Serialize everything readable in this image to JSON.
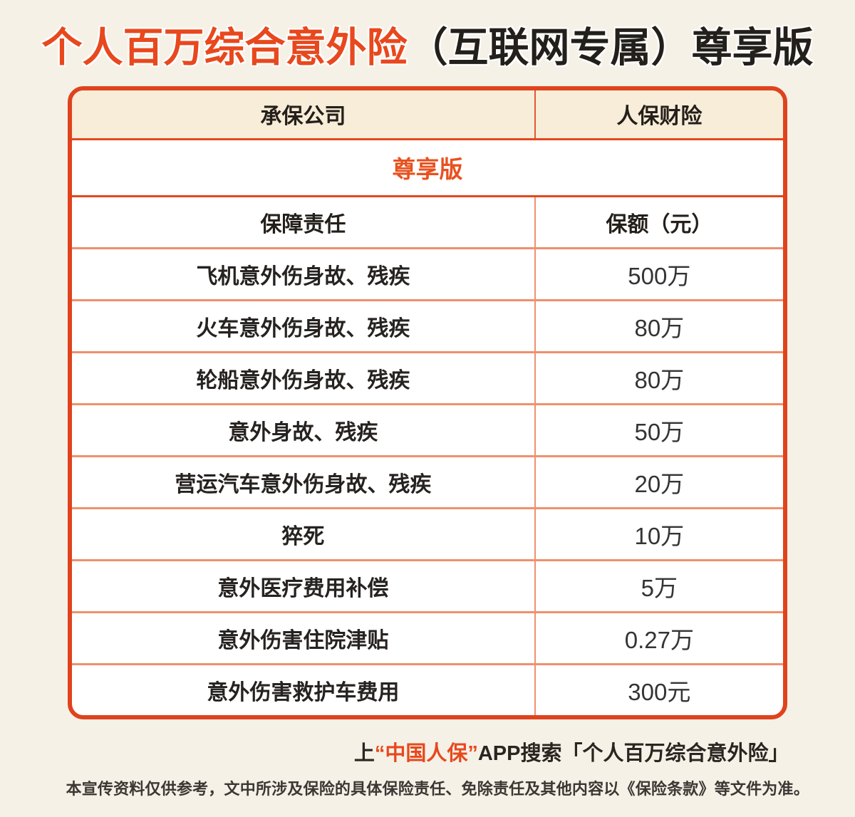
{
  "colors": {
    "page_background": "#f5f1e7",
    "accent_orange": "#e2481f",
    "inner_grid_salmon": "#f0906c",
    "header_cream": "#f8edd8",
    "text_dark": "#241f1a"
  },
  "title": {
    "highlight": "个人百万综合意外险",
    "rest": "（互联网专属）尊享版"
  },
  "table": {
    "header": {
      "left": "承保公司",
      "right": "人保财险"
    },
    "edition": "尊享版",
    "subheader": {
      "left": "保障责任",
      "right": "保额（元）"
    },
    "rows": [
      {
        "label": "飞机意外伤身故、残疾",
        "value": "500万"
      },
      {
        "label": "火车意外伤身故、残疾",
        "value": "80万"
      },
      {
        "label": "轮船意外伤身故、残疾",
        "value": "80万"
      },
      {
        "label": "意外身故、残疾",
        "value": "50万"
      },
      {
        "label": "营运汽车意外伤身故、残疾",
        "value": "20万"
      },
      {
        "label": "猝死",
        "value": "10万"
      },
      {
        "label": "意外医疗费用补偿",
        "value": "5万"
      },
      {
        "label": "意外伤害住院津贴",
        "value": "0.27万"
      },
      {
        "label": "意外伤害救护车费用",
        "value": "300元"
      }
    ]
  },
  "footer": {
    "search_prefix": "上",
    "brand": "“中国人保”",
    "search_suffix": "APP搜索「个人百万综合意外险」",
    "disclaimer": "本宣传资料仅供参考，文中所涉及保险的具体保险责任、免除责任及其他内容以《保险条款》等文件为准。"
  }
}
